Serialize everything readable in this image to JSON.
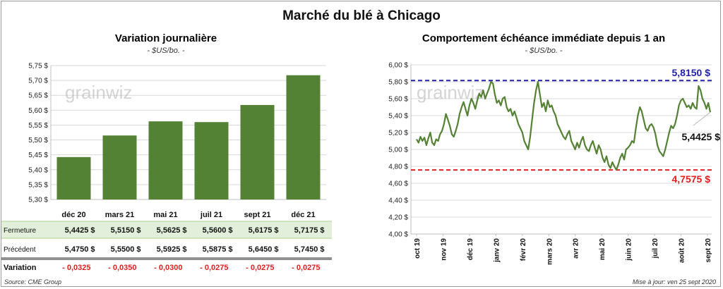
{
  "title": "Marché du blé à Chicago",
  "left": {
    "title": "Variation journalière",
    "unit": "- $US/bo. -",
    "rows": {
      "close_label": "Fermeture",
      "prev_label": "Précédent",
      "change_label": "Variation"
    }
  },
  "right": {
    "title": "Comportement échéance immédiate depuis 1 an",
    "unit": "- $US/bo. -"
  },
  "source": "Source: CME Group",
  "updated": "Mise à jour: ven 25 sept 2020",
  "colors": {
    "bar": "#548235",
    "line": "#548235",
    "high": "#2222aa",
    "low": "#e02020",
    "band": "#e2efda",
    "negative": "#e02020"
  },
  "logo_text": "grainwiz",
  "chart_data": [
    {
      "type": "bar",
      "categories": [
        "déc 20",
        "mars 21",
        "mai 21",
        "juil 21",
        "sept 21",
        "déc 21"
      ],
      "values": [
        5.4425,
        5.515,
        5.5625,
        5.56,
        5.6175,
        5.7175
      ],
      "ylim": [
        5.3,
        5.75
      ],
      "yticks": [
        "5,30 $",
        "5,35 $",
        "5,40 $",
        "5,45 $",
        "5,50 $",
        "5,55 $",
        "5,60 $",
        "5,65 $",
        "5,70 $",
        "5,75 $"
      ],
      "close": [
        "5,4425  $",
        "5,5150  $",
        "5,5625  $",
        "5,5600  $",
        "5,6175  $",
        "5,7175  $"
      ],
      "previous": [
        "5,4750  $",
        "5,5500  $",
        "5,5925  $",
        "5,5875  $",
        "5,6450  $",
        "5,7450  $"
      ],
      "change": [
        "- 0,0325",
        "- 0,0350",
        "- 0,0300",
        "- 0,0275",
        "- 0,0275",
        "- 0,0275"
      ],
      "grid": true
    },
    {
      "type": "line",
      "ylim": [
        4.0,
        6.0
      ],
      "yticks": [
        "4,00 $",
        "4,20 $",
        "4,40 $",
        "4,60 $",
        "4,80 $",
        "5,00 $",
        "5,20 $",
        "5,40 $",
        "5,60 $",
        "5,80 $",
        "6,00 $"
      ],
      "xticks": [
        "oct 19",
        "nov 19",
        "déc 19",
        "janv 20",
        "févr 20",
        "mars 20",
        "avr 20",
        "mai 20",
        "juin 20",
        "juil 20",
        "août 20",
        "sept 20"
      ],
      "high": 5.815,
      "high_label": "5,8150  $",
      "low": 4.7575,
      "low_label": "4,7575  $",
      "last_label": "5,4425 $",
      "values": [
        5.12,
        5.08,
        5.15,
        5.1,
        5.14,
        5.05,
        5.13,
        5.2,
        5.08,
        5.05,
        5.12,
        5.1,
        5.18,
        5.22,
        5.3,
        5.42,
        5.35,
        5.28,
        5.18,
        5.15,
        5.22,
        5.3,
        5.42,
        5.5,
        5.56,
        5.48,
        5.4,
        5.52,
        5.6,
        5.55,
        5.48,
        5.58,
        5.66,
        5.62,
        5.7,
        5.6,
        5.66,
        5.72,
        5.8,
        5.78,
        5.65,
        5.55,
        5.58,
        5.52,
        5.6,
        5.62,
        5.5,
        5.45,
        5.48,
        5.4,
        5.45,
        5.38,
        5.3,
        5.25,
        5.2,
        5.1,
        5.05,
        5.0,
        5.15,
        5.35,
        5.55,
        5.7,
        5.8,
        5.65,
        5.5,
        5.55,
        5.45,
        5.58,
        5.5,
        5.52,
        5.45,
        5.4,
        5.3,
        5.25,
        5.2,
        5.15,
        5.12,
        5.18,
        5.22,
        5.1,
        5.05,
        5.0,
        5.08,
        5.02,
        5.1,
        5.15,
        5.05,
        5.0,
        4.98,
        5.05,
        5.1,
        5.02,
        4.95,
        5.05,
        5.0,
        4.9,
        4.85,
        4.92,
        4.82,
        4.78,
        4.85,
        4.8,
        4.76,
        4.82,
        4.9,
        4.95,
        4.88,
        5.0,
        5.02,
        5.05,
        5.1,
        5.08,
        5.25,
        5.4,
        5.5,
        5.45,
        5.35,
        5.25,
        5.22,
        5.28,
        5.3,
        5.26,
        5.18,
        5.05,
        4.98,
        4.95,
        4.92,
        5.0,
        5.1,
        5.2,
        5.28,
        5.25,
        5.3,
        5.4,
        5.52,
        5.58,
        5.6,
        5.55,
        5.5,
        5.52,
        5.48,
        5.55,
        5.5,
        5.48,
        5.75,
        5.7,
        5.6,
        5.55,
        5.48,
        5.55,
        5.44
      ]
    }
  ]
}
